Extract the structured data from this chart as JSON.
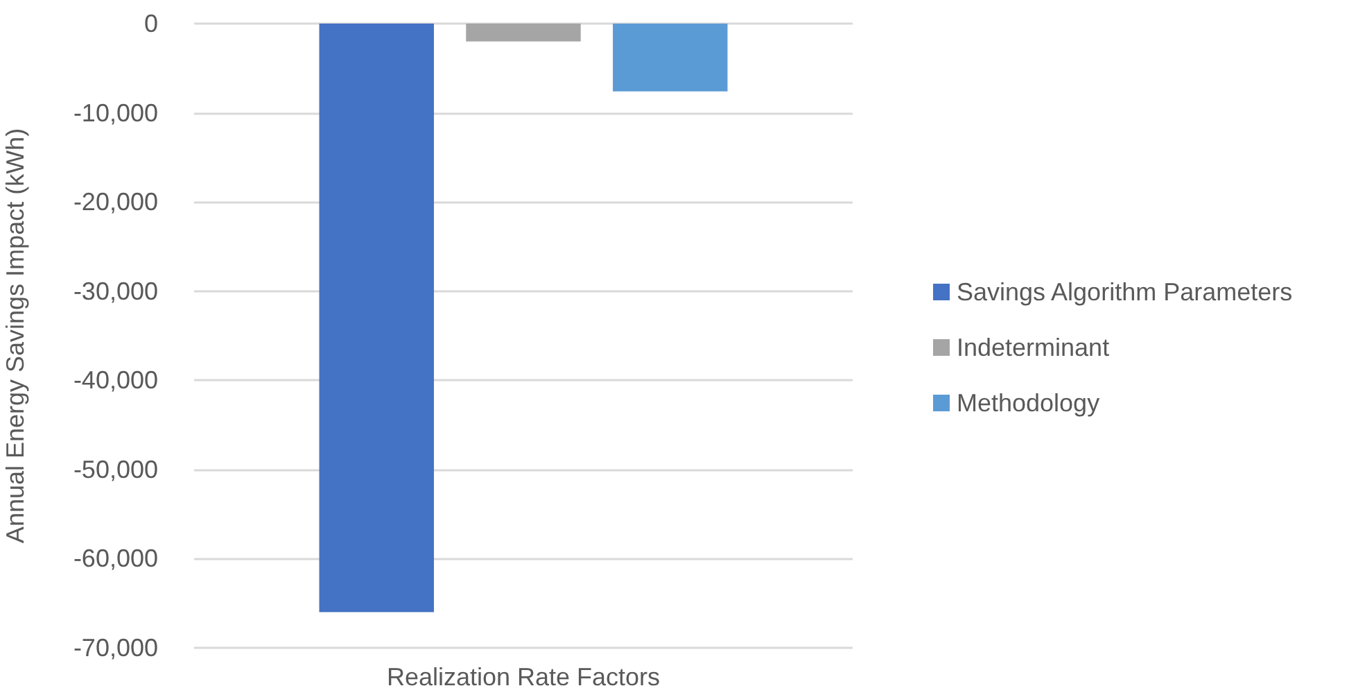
{
  "chart_data": {
    "type": "bar",
    "ylabel": "Annual Energy Savings Impact (kWh)",
    "categories": [
      "Realization Rate Factors"
    ],
    "series": [
      {
        "name": "Savings Algorithm Parameters",
        "color": "#4472c4",
        "values": [
          -66000
        ]
      },
      {
        "name": "Indeterminant",
        "color": "#a5a5a5",
        "values": [
          -2000
        ]
      },
      {
        "name": "Methodology",
        "color": "#5b9bd5",
        "values": [
          -7600
        ]
      }
    ],
    "ylim": [
      -70000,
      0
    ],
    "yticks": [
      {
        "value": -70000,
        "label": "-70,000"
      },
      {
        "value": -60000,
        "label": "-60,000"
      },
      {
        "value": -50000,
        "label": "-50,000"
      },
      {
        "value": -40000,
        "label": "-40,000"
      },
      {
        "value": -30000,
        "label": "-30,000"
      },
      {
        "value": -20000,
        "label": "-20,000"
      },
      {
        "value": -10000,
        "label": "-10,000"
      },
      0
    ],
    "grid": "y",
    "legend": "right"
  }
}
